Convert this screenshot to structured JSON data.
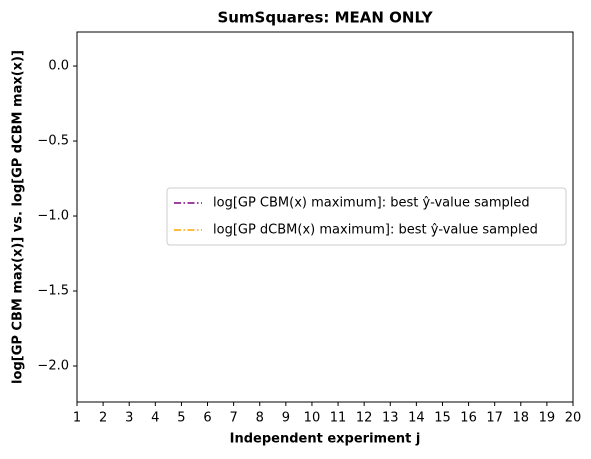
{
  "chart_data": {
    "type": "line",
    "title": "SumSquares: MEAN ONLY",
    "xlabel": "Independent experiment j",
    "ylabel": "log[GP CBM max(x)] vs. log[GP dCBM max(x)]",
    "series": [
      {
        "name": "log[GP CBM(x) maximum]: best ŷ-value sampled",
        "color": "#800080"
      },
      {
        "name": "log[GP dCBM(x) maximum]: best ŷ-value sampled",
        "color": "#ffa500"
      }
    ],
    "xlim": [
      1,
      20
    ],
    "xticks": [
      1,
      2,
      3,
      4,
      5,
      6,
      7,
      8,
      9,
      10,
      11,
      12,
      13,
      14,
      15,
      16,
      17,
      18,
      19,
      20
    ],
    "ylim": [
      -2.24,
      0.227
    ],
    "yticks": [
      {
        "value": 0,
        "label": "0.0"
      },
      {
        "value": -0.5,
        "label": "−0.5"
      },
      {
        "value": -1,
        "label": "−1.0"
      },
      {
        "value": -1.5,
        "label": "−1.5"
      },
      {
        "value": -2,
        "label": "−2.0"
      }
    ],
    "legend": "center right",
    "grid": false
  }
}
